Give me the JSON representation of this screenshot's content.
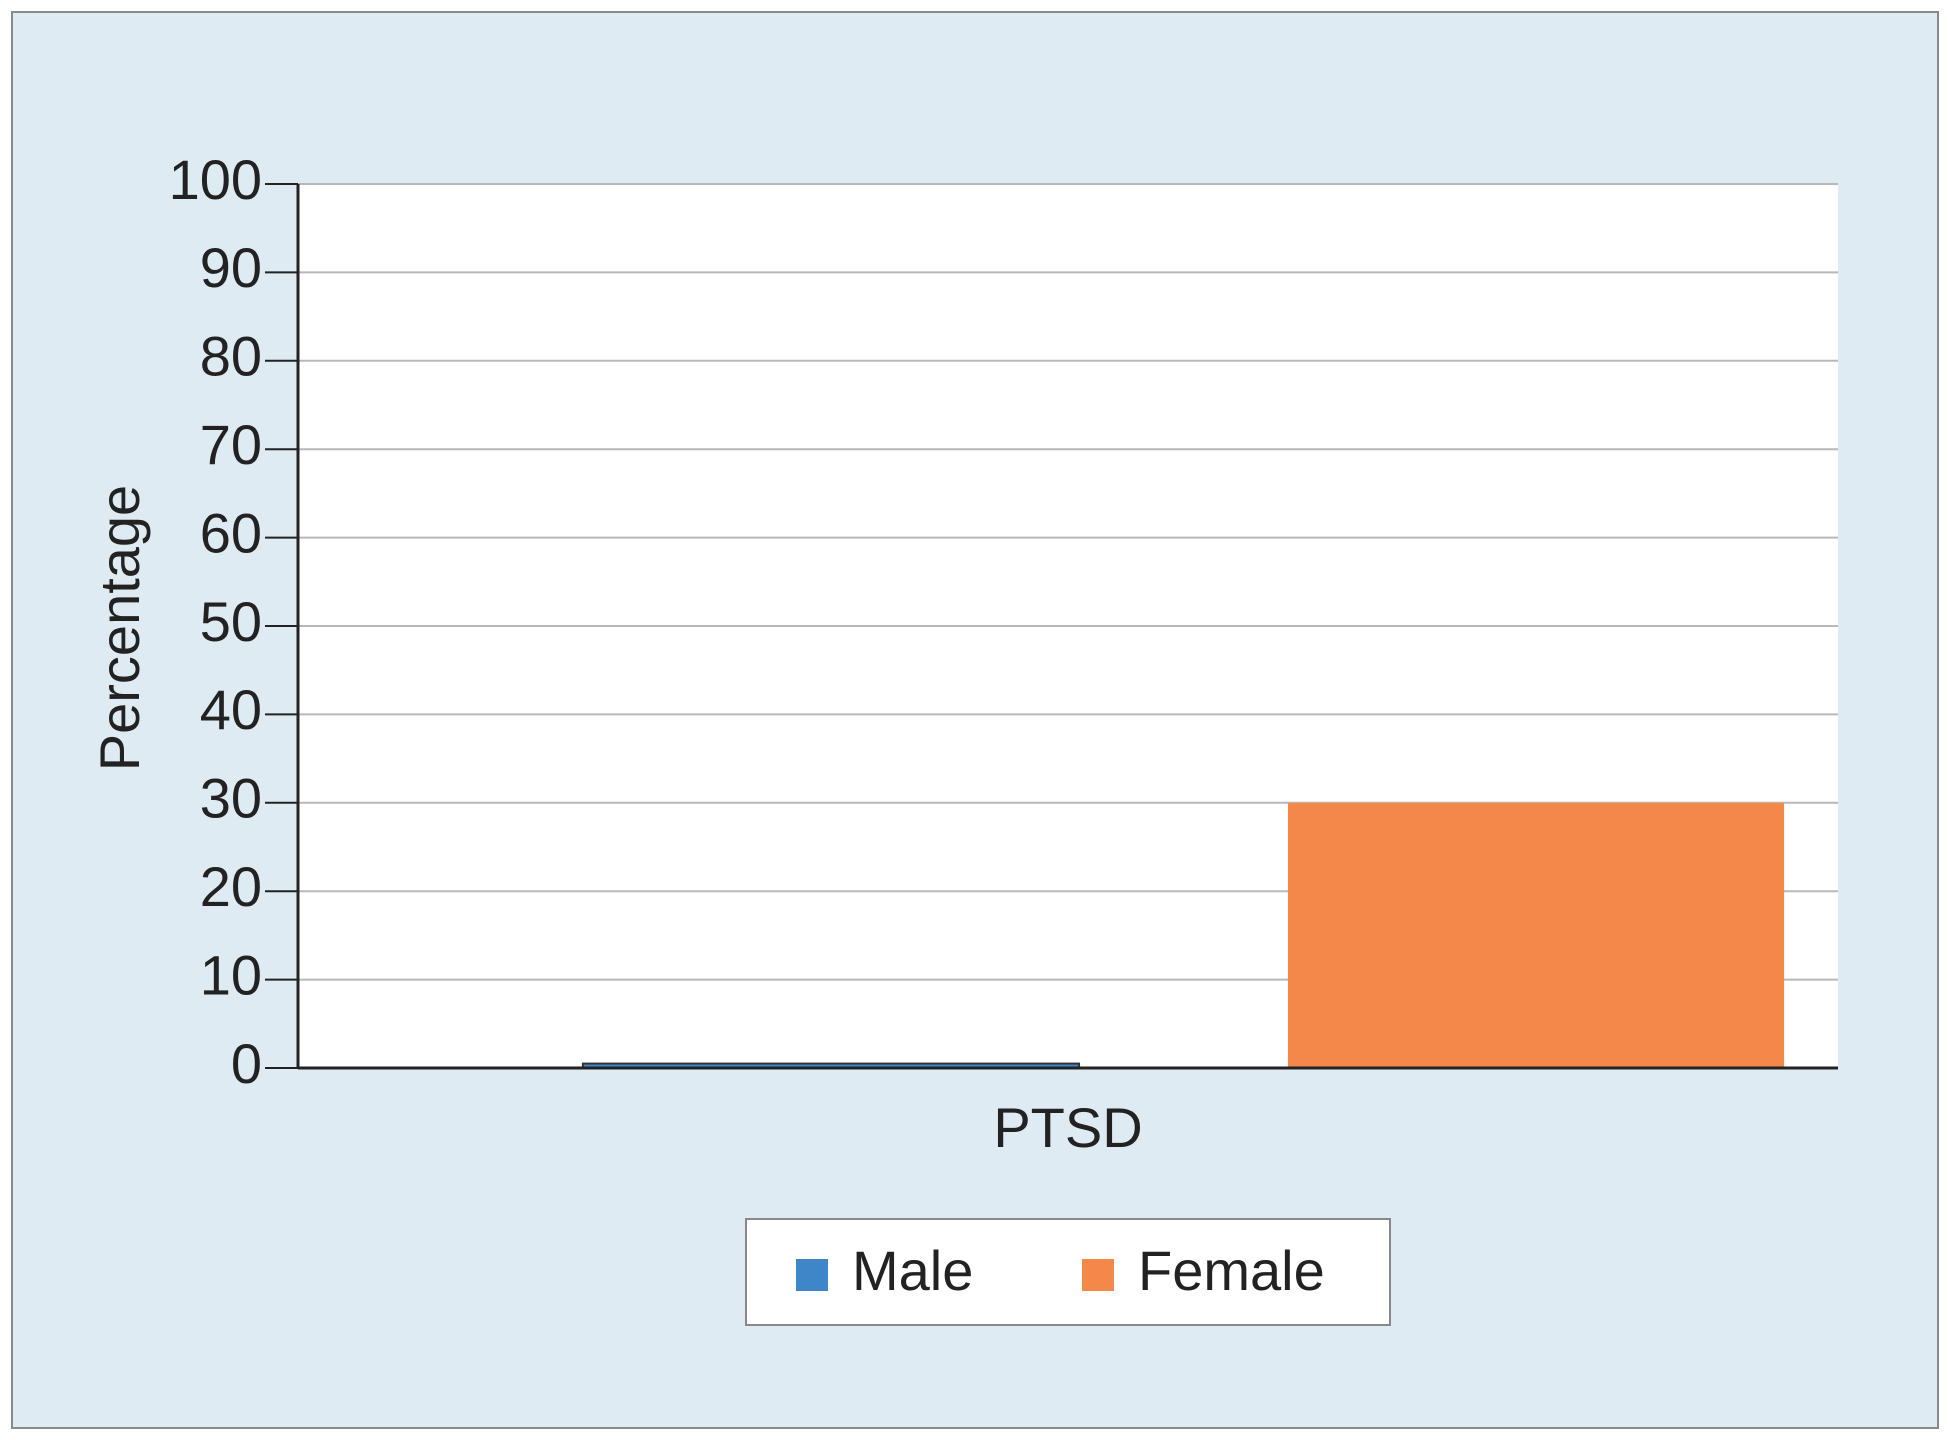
{
  "chart_data": {
    "type": "bar",
    "y_label": "Percentage",
    "categories": [
      "PTSD"
    ],
    "series": [
      {
        "name": "Male",
        "color": "#3f86c8",
        "values": [
          0.5
        ]
      },
      {
        "name": "Female",
        "color": "#f4874a",
        "values": [
          30
        ]
      }
    ],
    "ylim": [
      0,
      100
    ],
    "yticks": [
      0,
      10,
      20,
      30,
      40,
      50,
      60,
      70,
      80,
      90,
      100
    ],
    "grid": true
  }
}
